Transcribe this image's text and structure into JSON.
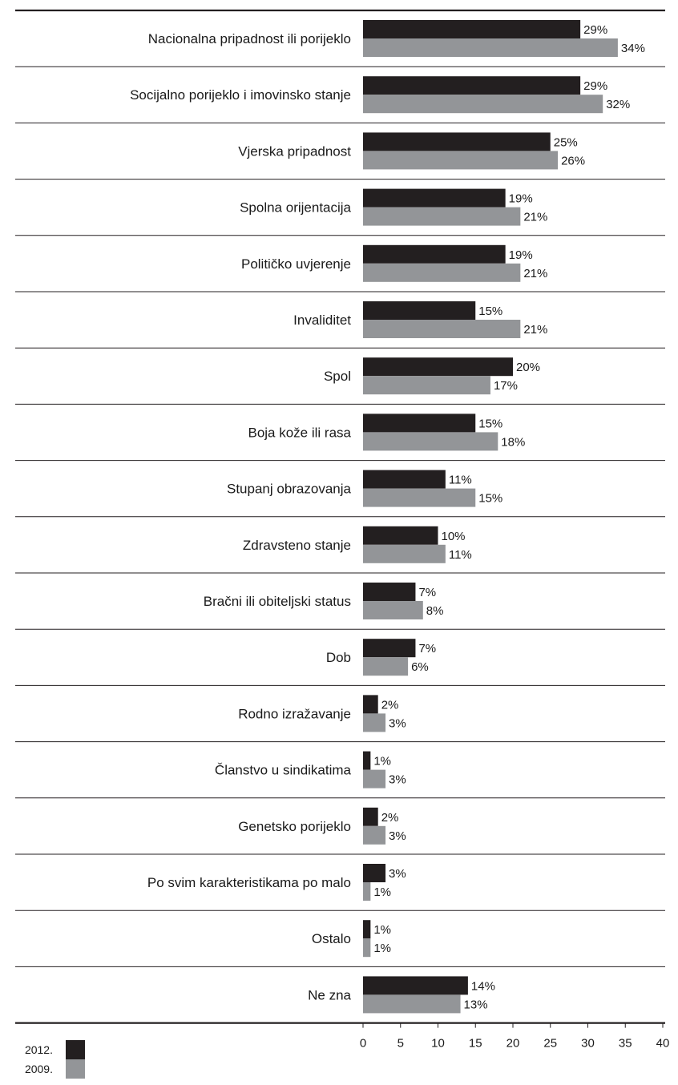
{
  "chart_data": {
    "type": "bar",
    "orientation": "horizontal",
    "categories": [
      "Nacionalna pripadnost ili porijeklo",
      "Socijalno porijeklo i imovinsko stanje",
      "Vjerska pripadnost",
      "Spolna orijentacija",
      "Političko uvjerenje",
      "Invaliditet",
      "Spol",
      "Boja kože ili rasa",
      "Stupanj obrazovanja",
      "Zdravsteno stanje",
      "Bračni ili obiteljski status",
      "Dob",
      "Rodno izražavanje",
      "Članstvo u sindikatima",
      "Genetsko porijeklo",
      "Po svim karakteristikama po malo",
      "Ostalo",
      "Ne zna"
    ],
    "series": [
      {
        "name": "2012.",
        "color": "#231f20",
        "values": [
          29,
          29,
          25,
          19,
          19,
          15,
          20,
          15,
          11,
          10,
          7,
          7,
          2,
          1,
          2,
          3,
          1,
          14
        ],
        "labels": [
          "29%",
          "29%",
          "25%",
          "19%",
          "19%",
          "15%",
          "20%",
          "15%",
          "11%",
          "10%",
          "7%",
          "7%",
          "2%",
          "1%",
          "2%",
          "3%",
          "1%",
          "14%"
        ]
      },
      {
        "name": "2009.",
        "color": "#939598",
        "values": [
          34,
          32,
          26,
          21,
          21,
          21,
          17,
          18,
          15,
          11,
          8,
          6,
          3,
          3,
          3,
          1,
          1,
          13
        ],
        "labels": [
          "34%",
          "32%",
          "26%",
          "21%",
          "21%",
          "21%",
          "17%",
          "18%",
          "15%",
          "11%",
          "8%",
          "6%",
          "3%",
          "3%",
          "3%",
          "1%",
          "1%",
          "13%"
        ]
      }
    ],
    "xlim": [
      0,
      40
    ],
    "xticks": [
      "0",
      "5",
      "10",
      "15",
      "20",
      "25",
      "30",
      "35",
      "40"
    ],
    "xlabel": "",
    "ylabel": "",
    "title": "",
    "grid": false,
    "legend": "bottom-left",
    "accent_line_color": "#231f20",
    "separator_color": "#231f20"
  }
}
